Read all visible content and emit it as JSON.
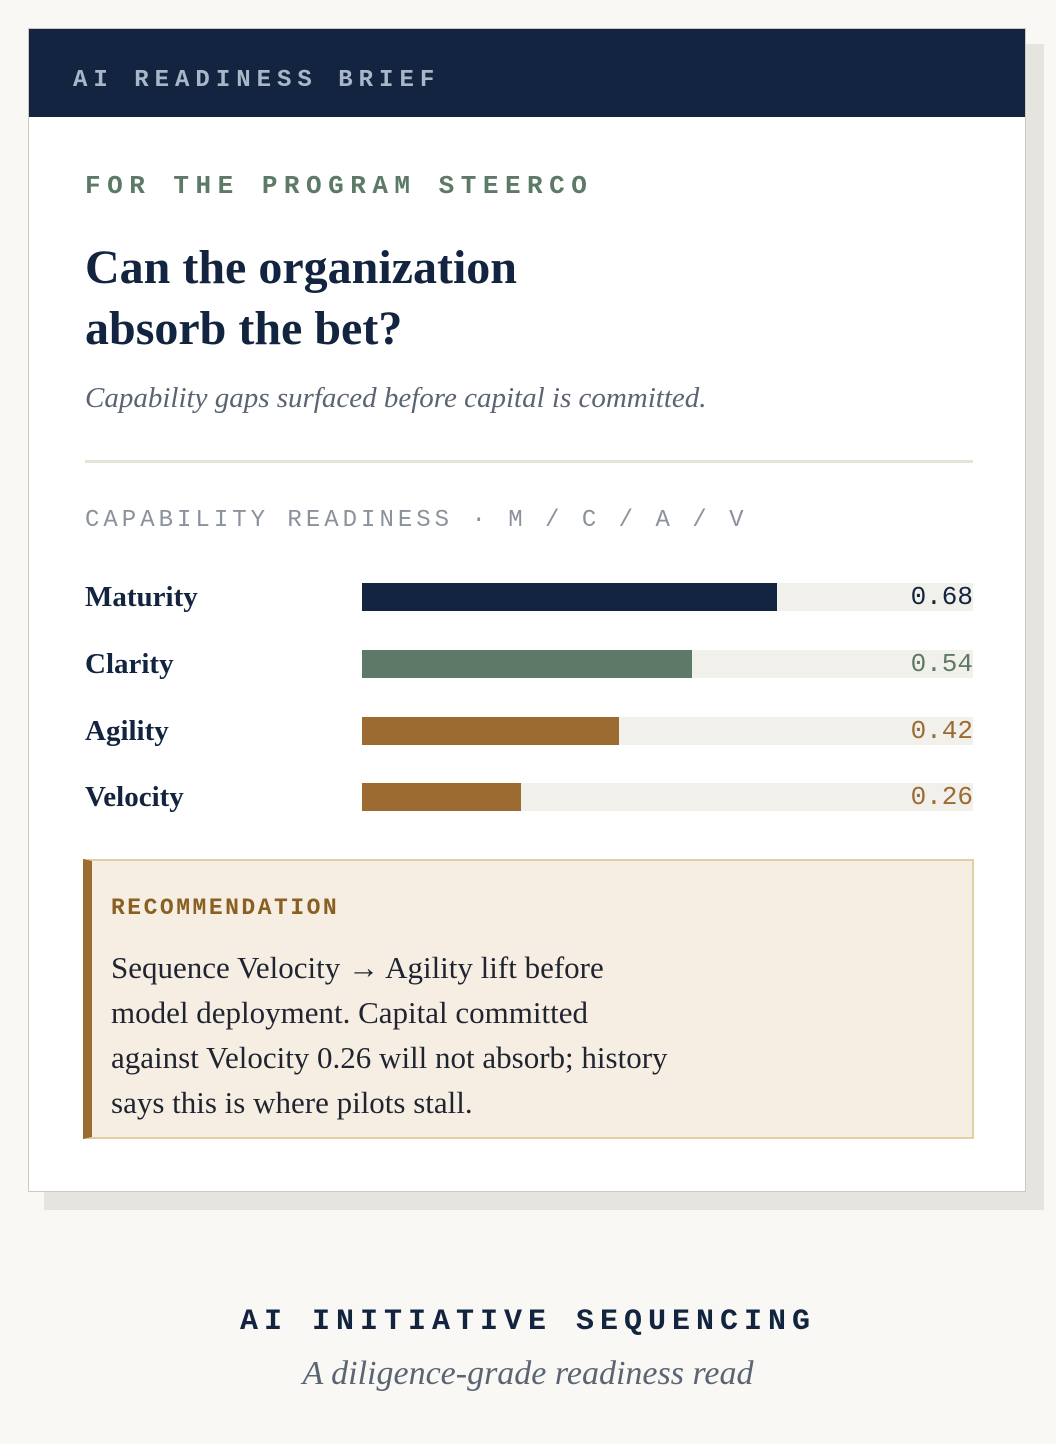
{
  "header": {
    "brand": "AI READINESS BRIEF",
    "color": "#12243f"
  },
  "brief": {
    "eyebrow": "FOR THE PROGRAM STEERCO",
    "headline": "Can the organization absorb the bet?",
    "subhead": "Capability gaps surfaced before capital is committed."
  },
  "readiness": {
    "section_label": "CAPABILITY READINESS · M / C / A / V",
    "metrics": [
      {
        "name": "Maturity",
        "value": 0.68,
        "value_text": "0.68",
        "color": "#12243f",
        "text_color": "#12243f"
      },
      {
        "name": "Clarity",
        "value": 0.54,
        "value_text": "0.54",
        "color": "#5d7a69",
        "text_color": "#5d7a69"
      },
      {
        "name": "Agility",
        "value": 0.42,
        "value_text": "0.42",
        "color": "#9b6b31",
        "text_color": "#9b6b31"
      },
      {
        "name": "Velocity",
        "value": 0.26,
        "value_text": "0.26",
        "color": "#9b6b31",
        "text_color": "#9b6b31"
      }
    ]
  },
  "recommendation": {
    "label": "RECOMMENDATION",
    "body": "Sequence Velocity → Agility lift before model deployment. Capital committed against Velocity 0.26 will not absorb; history says this is where pilots stall.",
    "accent_color": "#9b6b31"
  },
  "footer": {
    "title": "AI INITIATIVE SEQUENCING",
    "subtitle": "A diligence-grade readiness read"
  }
}
